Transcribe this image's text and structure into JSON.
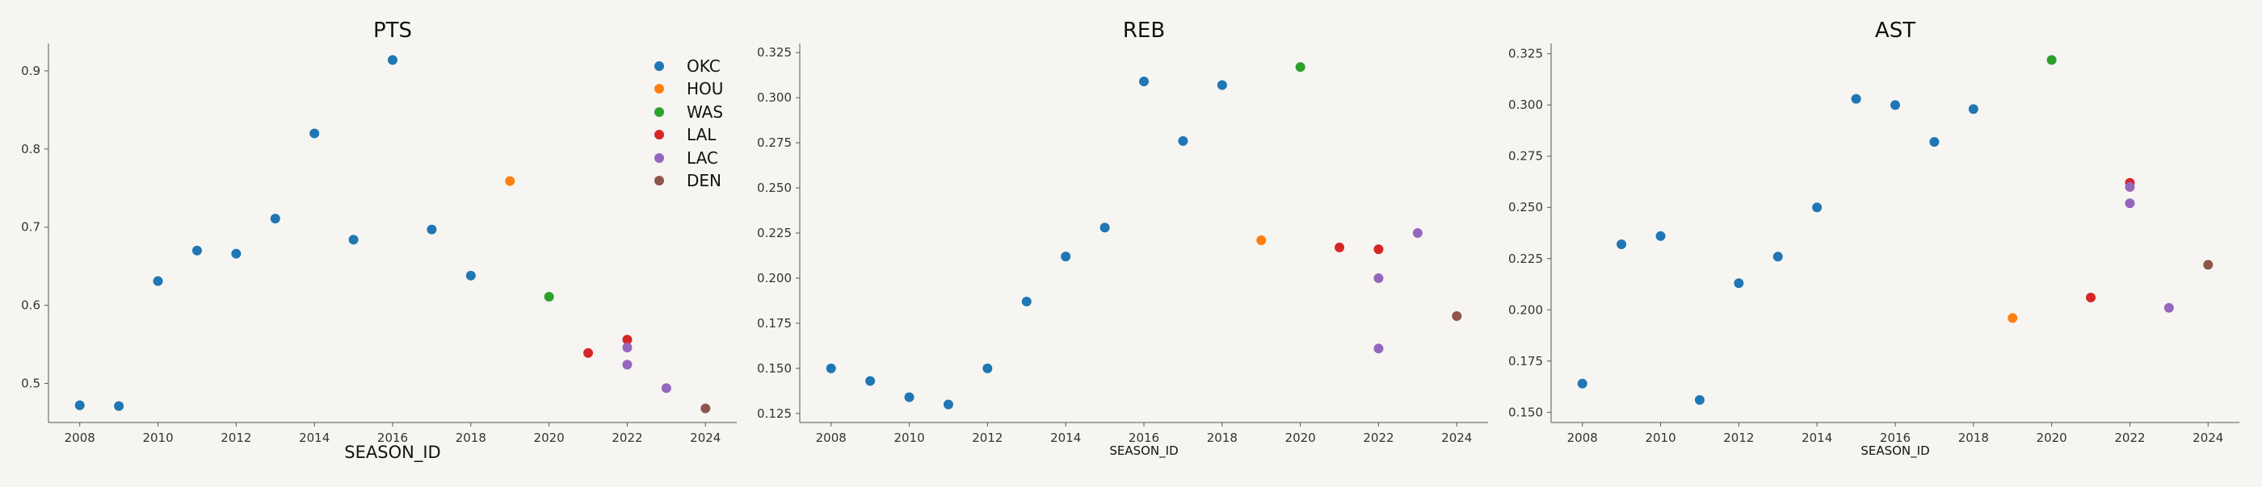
{
  "colors": {
    "OKC": "#1f77b4",
    "HOU": "#ff7f0e",
    "WAS": "#2ca02c",
    "LAL": "#d62728",
    "LAC": "#9467bd",
    "DEN": "#8c564b"
  },
  "legend": [
    "OKC",
    "HOU",
    "WAS",
    "LAL",
    "LAC",
    "DEN"
  ],
  "chart_data": [
    {
      "type": "scatter",
      "title": "PTS",
      "xlabel": "SEASON_ID",
      "ylabel": "",
      "xlim": [
        2007.2,
        2024.8
      ],
      "ylim": [
        0.45,
        0.935
      ],
      "xticks": [
        2008,
        2010,
        2012,
        2014,
        2016,
        2018,
        2020,
        2022,
        2024
      ],
      "yticks": [
        0.5,
        0.6,
        0.7,
        0.8,
        0.9
      ],
      "ytick_labels": [
        "0.5",
        "0.6",
        "0.7",
        "0.8",
        "0.9"
      ],
      "legend_position": "top-right",
      "points": [
        {
          "x": 2008,
          "y": 0.472,
          "team": "OKC"
        },
        {
          "x": 2009,
          "y": 0.471,
          "team": "OKC"
        },
        {
          "x": 2010,
          "y": 0.631,
          "team": "OKC"
        },
        {
          "x": 2011,
          "y": 0.67,
          "team": "OKC"
        },
        {
          "x": 2012,
          "y": 0.666,
          "team": "OKC"
        },
        {
          "x": 2013,
          "y": 0.711,
          "team": "OKC"
        },
        {
          "x": 2014,
          "y": 0.82,
          "team": "OKC"
        },
        {
          "x": 2015,
          "y": 0.684,
          "team": "OKC"
        },
        {
          "x": 2016,
          "y": 0.914,
          "team": "OKC"
        },
        {
          "x": 2017,
          "y": 0.697,
          "team": "OKC"
        },
        {
          "x": 2018,
          "y": 0.638,
          "team": "OKC"
        },
        {
          "x": 2019,
          "y": 0.759,
          "team": "HOU"
        },
        {
          "x": 2020,
          "y": 0.611,
          "team": "WAS"
        },
        {
          "x": 2021,
          "y": 0.539,
          "team": "LAL"
        },
        {
          "x": 2022,
          "y": 0.556,
          "team": "LAL"
        },
        {
          "x": 2022,
          "y": 0.546,
          "team": "LAC"
        },
        {
          "x": 2022,
          "y": 0.524,
          "team": "LAC"
        },
        {
          "x": 2023,
          "y": 0.494,
          "team": "LAC"
        },
        {
          "x": 2024,
          "y": 0.468,
          "team": "DEN"
        }
      ]
    },
    {
      "type": "scatter",
      "title": "REB",
      "xlabel": "SEASON_ID",
      "ylabel": "",
      "xlim": [
        2007.2,
        2024.8
      ],
      "ylim": [
        0.12,
        0.33
      ],
      "xticks": [
        2008,
        2010,
        2012,
        2014,
        2016,
        2018,
        2020,
        2022,
        2024
      ],
      "yticks": [
        0.125,
        0.15,
        0.175,
        0.2,
        0.225,
        0.25,
        0.275,
        0.3,
        0.325
      ],
      "ytick_labels": [
        "0.125",
        "0.150",
        "0.175",
        "0.200",
        "0.225",
        "0.250",
        "0.275",
        "0.300",
        "0.325"
      ],
      "points": [
        {
          "x": 2008,
          "y": 0.15,
          "team": "OKC"
        },
        {
          "x": 2009,
          "y": 0.143,
          "team": "OKC"
        },
        {
          "x": 2010,
          "y": 0.134,
          "team": "OKC"
        },
        {
          "x": 2011,
          "y": 0.13,
          "team": "OKC"
        },
        {
          "x": 2012,
          "y": 0.15,
          "team": "OKC"
        },
        {
          "x": 2013,
          "y": 0.187,
          "team": "OKC"
        },
        {
          "x": 2014,
          "y": 0.212,
          "team": "OKC"
        },
        {
          "x": 2015,
          "y": 0.228,
          "team": "OKC"
        },
        {
          "x": 2016,
          "y": 0.309,
          "team": "OKC"
        },
        {
          "x": 2017,
          "y": 0.276,
          "team": "OKC"
        },
        {
          "x": 2018,
          "y": 0.307,
          "team": "OKC"
        },
        {
          "x": 2019,
          "y": 0.221,
          "team": "HOU"
        },
        {
          "x": 2020,
          "y": 0.317,
          "team": "WAS"
        },
        {
          "x": 2021,
          "y": 0.217,
          "team": "LAL"
        },
        {
          "x": 2022,
          "y": 0.216,
          "team": "LAL"
        },
        {
          "x": 2022,
          "y": 0.2,
          "team": "LAC"
        },
        {
          "x": 2022,
          "y": 0.161,
          "team": "LAC"
        },
        {
          "x": 2023,
          "y": 0.225,
          "team": "LAC"
        },
        {
          "x": 2024,
          "y": 0.179,
          "team": "DEN"
        }
      ]
    },
    {
      "type": "scatter",
      "title": "AST",
      "xlabel": "SEASON_ID",
      "ylabel": "",
      "xlim": [
        2007.2,
        2024.8
      ],
      "ylim": [
        0.145,
        0.33
      ],
      "xticks": [
        2008,
        2010,
        2012,
        2014,
        2016,
        2018,
        2020,
        2022,
        2024
      ],
      "yticks": [
        0.15,
        0.175,
        0.2,
        0.225,
        0.25,
        0.275,
        0.3,
        0.325
      ],
      "ytick_labels": [
        "0.150",
        "0.175",
        "0.200",
        "0.225",
        "0.250",
        "0.275",
        "0.300",
        "0.325"
      ],
      "points": [
        {
          "x": 2008,
          "y": 0.164,
          "team": "OKC"
        },
        {
          "x": 2009,
          "y": 0.232,
          "team": "OKC"
        },
        {
          "x": 2010,
          "y": 0.236,
          "team": "OKC"
        },
        {
          "x": 2011,
          "y": 0.156,
          "team": "OKC"
        },
        {
          "x": 2012,
          "y": 0.213,
          "team": "OKC"
        },
        {
          "x": 2013,
          "y": 0.226,
          "team": "OKC"
        },
        {
          "x": 2014,
          "y": 0.25,
          "team": "OKC"
        },
        {
          "x": 2015,
          "y": 0.303,
          "team": "OKC"
        },
        {
          "x": 2016,
          "y": 0.3,
          "team": "OKC"
        },
        {
          "x": 2017,
          "y": 0.282,
          "team": "OKC"
        },
        {
          "x": 2018,
          "y": 0.298,
          "team": "OKC"
        },
        {
          "x": 2019,
          "y": 0.196,
          "team": "HOU"
        },
        {
          "x": 2020,
          "y": 0.322,
          "team": "WAS"
        },
        {
          "x": 2021,
          "y": 0.206,
          "team": "LAL"
        },
        {
          "x": 2022,
          "y": 0.262,
          "team": "LAL"
        },
        {
          "x": 2022,
          "y": 0.26,
          "team": "LAC"
        },
        {
          "x": 2022,
          "y": 0.252,
          "team": "LAC"
        },
        {
          "x": 2023,
          "y": 0.201,
          "team": "LAC"
        },
        {
          "x": 2024,
          "y": 0.222,
          "team": "DEN"
        }
      ]
    }
  ]
}
